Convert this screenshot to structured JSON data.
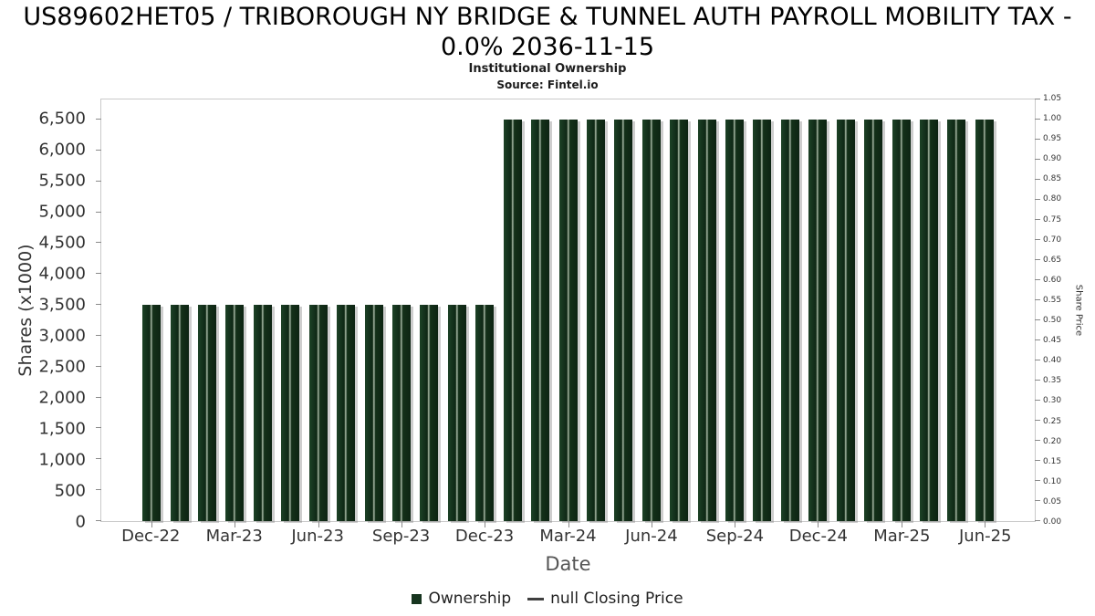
{
  "header": {
    "title": "US89602HET05 / TRIBOROUGH NY BRIDGE & TUNNEL AUTH PAYROLL MOBILITY TAX - 0.0% 2036-11-15",
    "subtitle": "Institutional Ownership",
    "source": "Source: Fintel.io"
  },
  "chart_data": {
    "type": "bar",
    "title": "Institutional Ownership",
    "xlabel": "Date",
    "ylabel_left": "Shares (x1000)",
    "ylabel_right": "Share Price",
    "bar_color": "#17351f",
    "grid": false,
    "legend_position": "bottom",
    "categories": [
      "Dec-22",
      "Jan-23",
      "Feb-23",
      "Mar-23",
      "Apr-23",
      "May-23",
      "Jun-23",
      "Jul-23",
      "Aug-23",
      "Sep-23",
      "Oct-23",
      "Nov-23",
      "Dec-23",
      "Jan-24",
      "Feb-24",
      "Mar-24",
      "Apr-24",
      "May-24",
      "Jun-24",
      "Jul-24",
      "Aug-24",
      "Sep-24",
      "Oct-24",
      "Nov-24",
      "Dec-24",
      "Jan-25",
      "Feb-25",
      "Mar-25",
      "Apr-25",
      "May-25",
      "Jun-25"
    ],
    "values": [
      3500,
      3500,
      3500,
      3500,
      3500,
      3500,
      3500,
      3500,
      3500,
      3500,
      3500,
      3500,
      3500,
      6500,
      6500,
      6500,
      6500,
      6500,
      6500,
      6500,
      6500,
      6500,
      6500,
      6500,
      6500,
      6500,
      6500,
      6500,
      6500,
      6500,
      6500
    ],
    "y_axis_left": {
      "max": 6825,
      "axis_range_shown": [
        0,
        6500
      ],
      "tick_values": [
        0,
        500,
        1000,
        1500,
        2000,
        2500,
        3000,
        3500,
        4000,
        4500,
        5000,
        5500,
        6000,
        6500
      ],
      "tick_labels": [
        "0",
        "500",
        "1,000",
        "1,500",
        "2,000",
        "2,500",
        "3,000",
        "3,500",
        "4,000",
        "4,500",
        "5,000",
        "5,500",
        "6,000",
        "6,500"
      ]
    },
    "y_axis_right": {
      "max": 1.05,
      "axis_range_shown": [
        0.0,
        1.05
      ],
      "tick_values": [
        0,
        0.05,
        0.1,
        0.15,
        0.2,
        0.25,
        0.3,
        0.35,
        0.4,
        0.45,
        0.5,
        0.55,
        0.6,
        0.65,
        0.7,
        0.75,
        0.8,
        0.85,
        0.9,
        0.95,
        1.0,
        1.05
      ],
      "tick_labels": [
        "0.00",
        "0.05",
        "0.10",
        "0.15",
        "0.20",
        "0.25",
        "0.30",
        "0.35",
        "0.40",
        "0.45",
        "0.50",
        "0.55",
        "0.60",
        "0.65",
        "0.70",
        "0.75",
        "0.80",
        "0.85",
        "0.90",
        "0.95",
        "1.00",
        "1.05"
      ]
    },
    "x_ticks": [
      {
        "label": "Dec-22",
        "index": 0
      },
      {
        "label": "Mar-23",
        "index": 3
      },
      {
        "label": "Jun-23",
        "index": 6
      },
      {
        "label": "Sep-23",
        "index": 9
      },
      {
        "label": "Dec-23",
        "index": 12
      },
      {
        "label": "Mar-24",
        "index": 15
      },
      {
        "label": "Jun-24",
        "index": 18
      },
      {
        "label": "Sep-24",
        "index": 21
      },
      {
        "label": "Dec-24",
        "index": 24
      },
      {
        "label": "Mar-25",
        "index": 27
      },
      {
        "label": "Jun-25",
        "index": 30
      }
    ],
    "legend": [
      {
        "label": "Ownership",
        "marker": "square",
        "color": "#17351f"
      },
      {
        "label": "null Closing Price",
        "marker": "dash",
        "color": "#3f3f3f"
      }
    ]
  }
}
